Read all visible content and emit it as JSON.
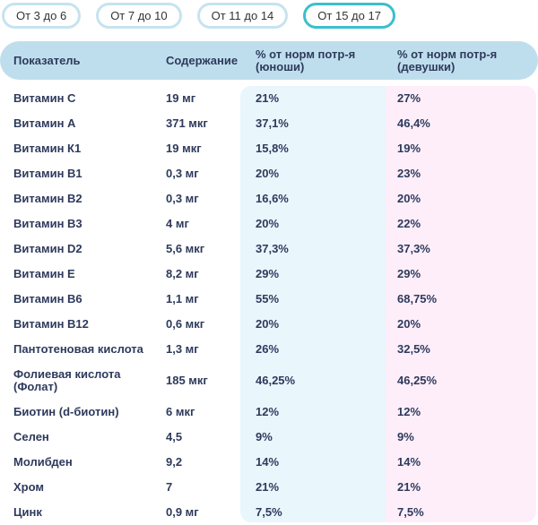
{
  "tabs": [
    {
      "label": "От 3 до 6"
    },
    {
      "label": "От 7 до 10"
    },
    {
      "label": "От 11 до 14"
    },
    {
      "label": "От 15 до 17",
      "active": true
    }
  ],
  "table": {
    "headers": [
      "Показатель",
      "Содержание",
      "% от норм потр-я (юноши)",
      "% от норм потр-я (девушки)"
    ],
    "rows": [
      [
        "Витамин C",
        "19 мг",
        "21%",
        "27%"
      ],
      [
        "Витамин A",
        "371 мкг",
        "37,1%",
        "46,4%"
      ],
      [
        "Витамин К1",
        "19 мкг",
        "15,8%",
        "19%"
      ],
      [
        "Витамин B1",
        "0,3 мг",
        "20%",
        "23%"
      ],
      [
        "Витамин B2",
        "0,3 мг",
        "16,6%",
        "20%"
      ],
      [
        "Витамин B3",
        "4 мг",
        "20%",
        "22%"
      ],
      [
        "Витамин D2",
        "5,6 мкг",
        "37,3%",
        "37,3%"
      ],
      [
        "Витамин E",
        "8,2 мг",
        "29%",
        "29%"
      ],
      [
        "Витамин B6",
        "1,1 мг",
        "55%",
        "68,75%"
      ],
      [
        "Витамин B12",
        "0,6 мкг",
        "20%",
        "20%"
      ],
      [
        "Пантотеновая кислота",
        "1,3 мг",
        "26%",
        "32,5%"
      ],
      [
        "Фолиевая кислота (Фолат)",
        "185 мкг",
        "46,25%",
        "46,25%"
      ],
      [
        "Биотин (d-биотин)",
        "6 мкг",
        "12%",
        "12%"
      ],
      [
        "Селен",
        "4,5",
        "9%",
        "9%"
      ],
      [
        "Молибден",
        "9,2",
        "14%",
        "14%"
      ],
      [
        "Хром",
        "7",
        "21%",
        "21%"
      ],
      [
        "Цинк",
        "0,9 мг",
        "7,5%",
        "7,5%"
      ]
    ]
  },
  "colors": {
    "header": "#bfdeed",
    "boys": "#e9f6fc",
    "girls": "#fdeefa",
    "active_tab": "#3bbfcc"
  }
}
